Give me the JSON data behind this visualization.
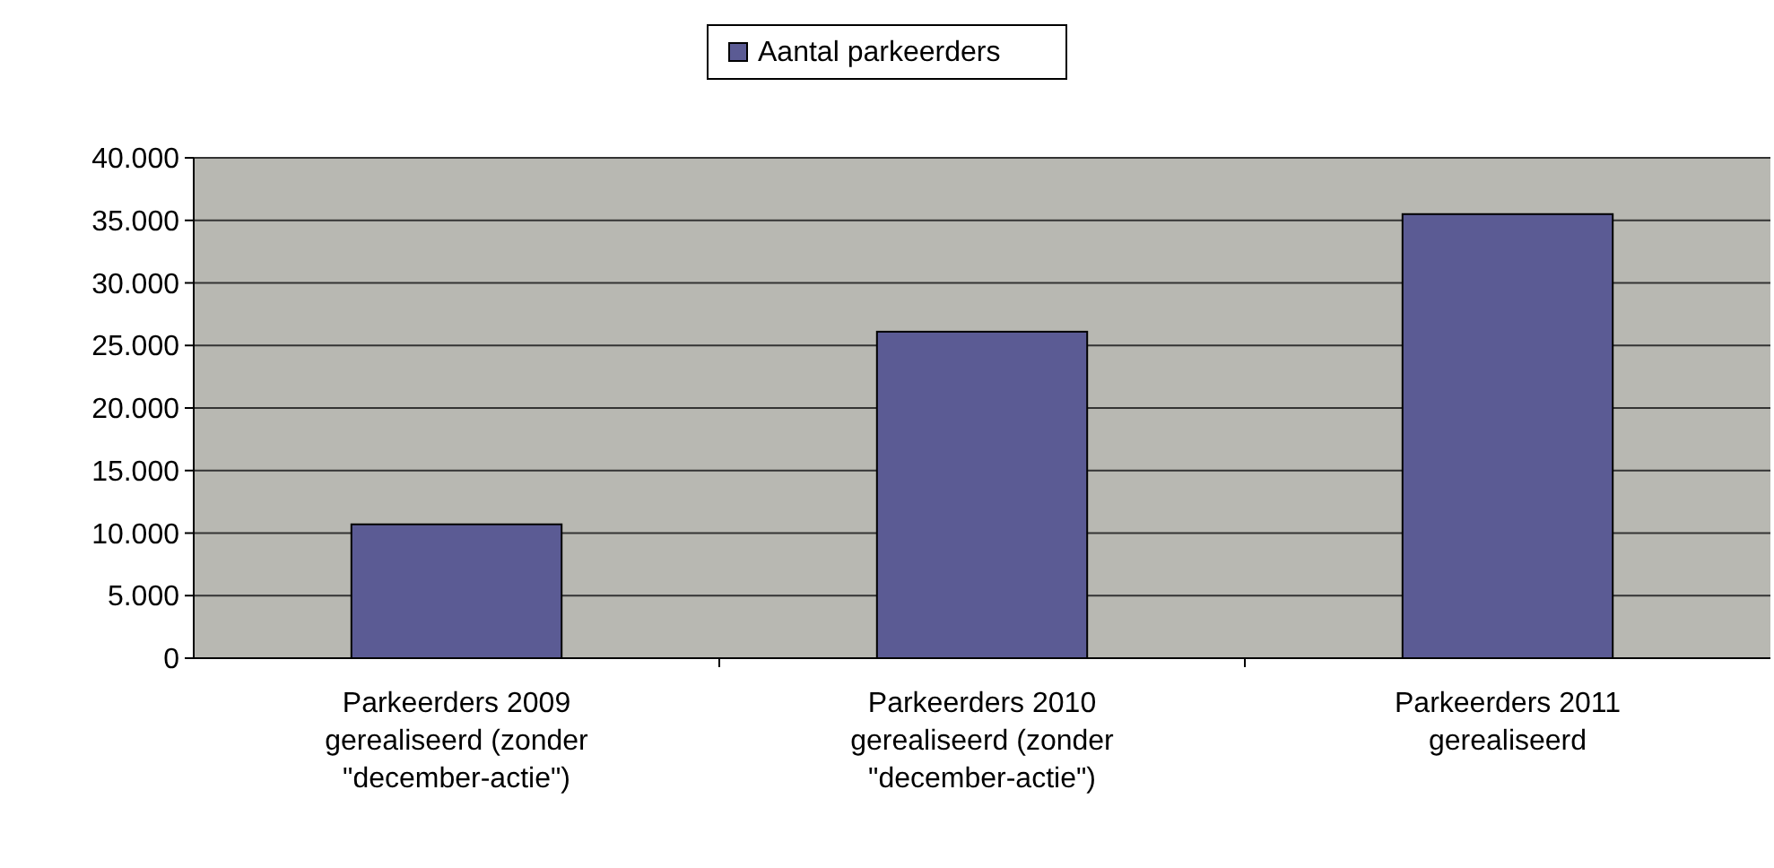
{
  "chart_data": {
    "type": "bar",
    "categories": [
      "Parkeerders 2009\ngerealiseerd (zonder\n\"december-actie\")",
      "Parkeerders 2010\ngerealiseerd (zonder\n\"december-actie\")",
      "Parkeerders 2011\ngerealiseerd"
    ],
    "series": [
      {
        "name": "Aantal parkeerders",
        "color": "#5b5b94",
        "values": [
          10700,
          26100,
          35500
        ]
      }
    ],
    "ylim": [
      0,
      40000
    ],
    "yticks": [
      0,
      {
        "value": 5000,
        "label": "5.000"
      },
      {
        "value": 10000,
        "label": "10.000"
      },
      {
        "value": 15000,
        "label": "15.000"
      },
      {
        "value": 20000,
        "label": "20.000"
      },
      {
        "value": 25000,
        "label": "25.000"
      },
      {
        "value": 30000,
        "label": "30.000"
      },
      {
        "value": 35000,
        "label": "35.000"
      },
      {
        "value": 40000,
        "label": "40.000"
      }
    ],
    "grid": "y",
    "legend": "top"
  }
}
